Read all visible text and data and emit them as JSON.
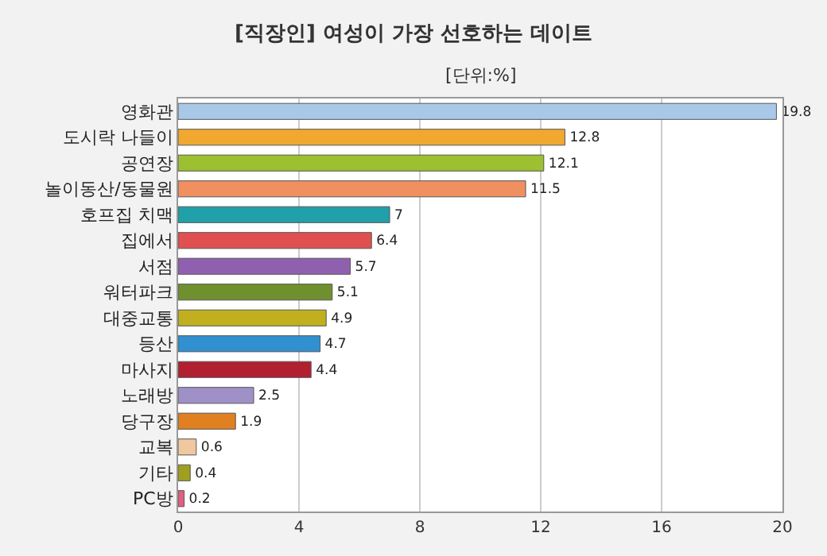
{
  "chart_data": {
    "type": "bar",
    "orientation": "horizontal",
    "title": "[직장인] 여성이 가장 선호하는 데이트",
    "subtitle": "[단위:%]",
    "categories": [
      "영화관",
      "도시락 나들이",
      "공연장",
      "놀이동산/동물원",
      "호프집 치맥",
      "집에서",
      "서점",
      "워터파크",
      "대중교통",
      "등산",
      "마사지",
      "노래방",
      "당구장",
      "교복",
      "기타",
      "PC방"
    ],
    "values": [
      19.8,
      12.8,
      12.1,
      11.5,
      7,
      6.4,
      5.7,
      5.1,
      4.9,
      4.7,
      4.4,
      2.5,
      1.9,
      0.6,
      0.4,
      0.2
    ],
    "colors": [
      "#a9c8e8",
      "#f0a830",
      "#9cc030",
      "#f09060",
      "#20a0a8",
      "#e05050",
      "#9060b0",
      "#709030",
      "#c0b020",
      "#3090d0",
      "#b02030",
      "#a090c8",
      "#e08020",
      "#f0c8a0",
      "#a0a020",
      "#e06080"
    ],
    "xlim": [
      0,
      20
    ],
    "xticks": [
      0,
      4,
      8,
      12,
      16,
      20
    ],
    "grid": "x",
    "data_labels": true
  }
}
